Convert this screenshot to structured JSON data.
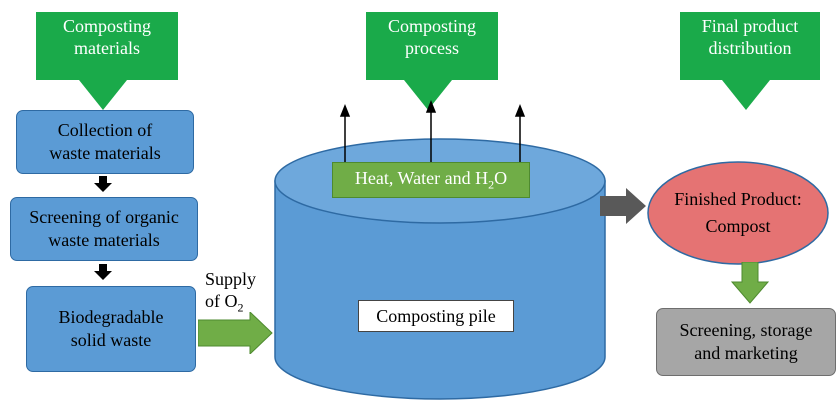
{
  "callouts": {
    "materials": {
      "line1": "Composting",
      "line2": "materials"
    },
    "process": {
      "line1": "Composting",
      "line2": "process"
    },
    "distribution": {
      "line1": "Final product",
      "line2": "distribution"
    }
  },
  "steps": {
    "collection": {
      "line1": "Collection of",
      "line2": "waste materials"
    },
    "screening": {
      "line1": "Screening of organic",
      "line2": "waste materials"
    },
    "biodegradable": {
      "line1": "Biodegradable",
      "line2": "solid waste"
    }
  },
  "oxygen": {
    "line1": "Supply",
    "of": "of O",
    "sub": "2"
  },
  "emission": {
    "text": "Heat, Water and H",
    "sub": "2",
    "tail": "O"
  },
  "pile": {
    "label": "Composting pile"
  },
  "finished": {
    "line1": "Finished Product:",
    "line2": "Compost"
  },
  "final_step": {
    "line1": "Screening, storage",
    "line2": "and marketing"
  },
  "colors": {
    "callout_green": "#1aaa4a",
    "step_blue": "#5b9bd5",
    "cylinder_blue": "#5b9bd5",
    "emission_green": "#70ad47",
    "finished_red": "#e57373",
    "final_gray": "#a6a6a6",
    "arrow_gray": "#595959"
  }
}
